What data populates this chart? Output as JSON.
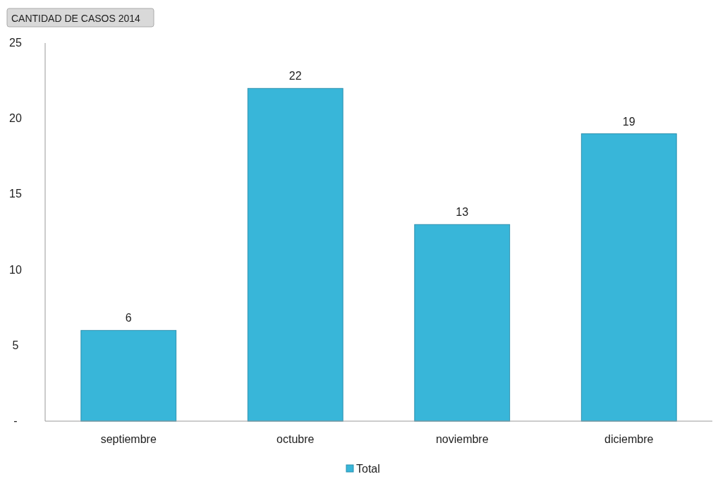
{
  "chart_data": {
    "type": "bar",
    "title": "CANTIDAD DE CASOS 2014",
    "categories": [
      "septiembre",
      "octubre",
      "noviembre",
      "diciembre"
    ],
    "series": [
      {
        "name": "Total",
        "color": "#38b6d9",
        "values": [
          6,
          22,
          13,
          19
        ]
      }
    ],
    "ylim": [
      0,
      25
    ],
    "yticks": [
      {
        "value": 0,
        "label": "-"
      },
      5,
      10,
      15,
      20,
      25
    ],
    "grid": false,
    "legend": "bottom",
    "data_labels": true
  }
}
